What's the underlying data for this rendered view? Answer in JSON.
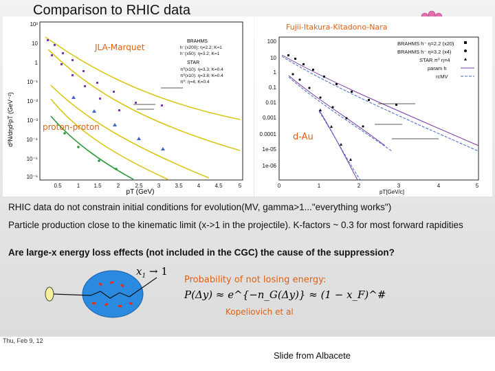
{
  "slide": {
    "title": "Comparison to RHIC data",
    "date": "Thu, Feb 9, 12",
    "credit": "Slide from Albacete"
  },
  "annotations": {
    "jla": "JLA-Marquet",
    "pp": "proton-proton",
    "fkn": "Fujii-Itakura-Kitadono-Nara",
    "dau": "d-Au",
    "prob": "Probability of not losing energy:",
    "kop": "Kopeliovich et al",
    "x1": "x",
    "x1sub": "1",
    "x1arrow": "→ 1",
    "formula": "P(Δy) ≈ e^{−n_G(Δy)} ≈ (1 − x_F)^#"
  },
  "bullets": [
    "RHIC data do not constrain initial conditions for evolution(MV, gamma>1...\"everything works\")",
    "Particle production close to the kinematic limit (x->1 in the projectile).  K-factors ~ 0.3 for most forward rapidities",
    "Are large-x energy loss effects (not included in the CGC) the cause of the suppression?"
  ],
  "left_plot": {
    "ylabel": "d³N/dηd²pT (GeV⁻²)",
    "xlabel": "pT (GeV)",
    "xticks": [
      "0.5",
      "1",
      "1.5",
      "2",
      "2.5",
      "3",
      "3.5",
      "4",
      "4.5",
      "5"
    ],
    "yticks": [
      "10²",
      "10",
      "1",
      "10⁻¹",
      "10⁻²",
      "10⁻³",
      "10⁻⁴",
      "10⁻⁵",
      "10⁻⁶"
    ],
    "legend_group1": "BRAHMS",
    "legend_group2": "STAR",
    "legend": [
      "h⁻(x200): η=2.2; K=1",
      "h⁻(x50): η=3.2; K=1",
      "π⁰(x10): η=3.3; K=0.4",
      "π⁰(x10): η=3.8; K=0.4",
      "π⁰: η=4; K=0.4"
    ]
  },
  "right_plot": {
    "xlabel": "pT[GeV/c]",
    "xticks": [
      "0",
      "1",
      "2",
      "3",
      "4",
      "5"
    ],
    "yticks": [
      "100",
      "10",
      "1",
      "0.1",
      "0.01",
      "0.001",
      "0.0001",
      "1e-05",
      "1e-06"
    ],
    "legend": [
      "BRAHMS h⁻ η=2.2 (x20)",
      "BRAHMS h⁻ η=3.2 (x4)",
      "STAR π⁰ η=4",
      "param h",
      "rcMV"
    ]
  },
  "colors": {
    "orange": "#e06010",
    "yellow_curve": "#d8c818",
    "green_curve": "#2a9a3a",
    "purple": "#7a3aa8",
    "bubble": "#2a8adf",
    "pink": "#e070b0"
  }
}
